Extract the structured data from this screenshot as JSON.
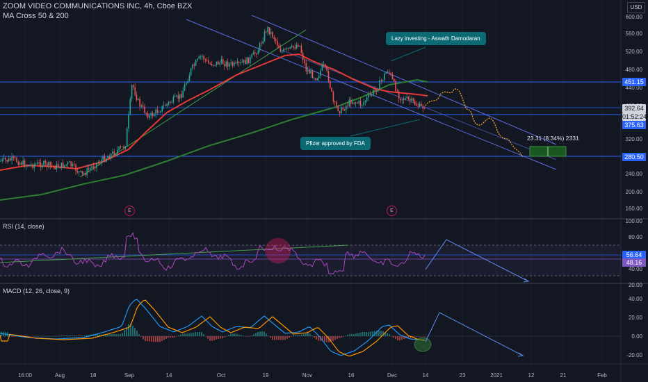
{
  "header": {
    "symbol_line": "ZOOM VIDEO COMMUNICATIONS INC, 4h, Cboe BZX",
    "study_line": "MA Cross 50 & 200"
  },
  "currency_label": "USD",
  "price_axis": {
    "ticks": [
      "600.00",
      "560.00",
      "520.00",
      "480.00",
      "440.00",
      "400.00",
      "360.00",
      "320.00",
      "280.00",
      "240.00",
      "200.00",
      "160.00"
    ],
    "badges": [
      {
        "text": "451.15",
        "bg": "#2962ff",
        "color": "#ffffff"
      },
      {
        "text": "392.64",
        "bg": "#d1d4dc",
        "color": "#131722"
      },
      {
        "text": "01:52:24",
        "bg": "#d1d4dc",
        "color": "#131722"
      },
      {
        "text": "375.63",
        "bg": "#2962ff",
        "color": "#ffffff"
      },
      {
        "text": "280.50",
        "bg": "#2962ff",
        "color": "#ffffff"
      }
    ]
  },
  "rsi": {
    "label": "RSI (14, close)",
    "ticks": [
      "100.00",
      "80.00",
      "40.00",
      "20.00"
    ],
    "badges": [
      {
        "text": "56.64",
        "bg": "#2962ff",
        "color": "#ffffff"
      },
      {
        "text": "48.16",
        "bg": "#7e57c2",
        "color": "#ffffff"
      }
    ]
  },
  "macd": {
    "label": "MACD (12, 26, close, 9)",
    "ticks": [
      "40.00",
      "20.00",
      "0.00",
      "-20.00"
    ]
  },
  "time_axis": [
    "16:00",
    "Aug",
    "18",
    "Sep",
    "14",
    "Oct",
    "19",
    "Nov",
    "16",
    "Dec",
    "14",
    "23",
    "2021",
    "12",
    "21",
    "Feb"
  ],
  "annotations": {
    "callout_top": "Lazy investing - Aswath Damodaran",
    "callout_bottom": "Pfizer approved by FDA",
    "measure": "23.31 (8.34%) 2331",
    "earnings_mark": "E"
  },
  "colors": {
    "background": "#131722",
    "up_candle": "#26a69a",
    "down_candle": "#ef5350",
    "ma50": "#e53935",
    "ma200": "#2e7d32",
    "channel": "#5b6ee1",
    "rsi_line": "#7e57c2",
    "macd_line": "#2196f3",
    "signal_line": "#ff9800",
    "callout": "#0c6a75",
    "projection": "#ffa726"
  },
  "chart_data": {
    "type": "candlestick",
    "price_series_sample": [
      {
        "t": "Aug",
        "close": 282
      },
      {
        "t": "18",
        "close": 265
      },
      {
        "t": "Sep",
        "close": 300
      },
      {
        "t": "Sep+",
        "close": 460
      },
      {
        "t": "14",
        "close": 395
      },
      {
        "t": "Oct",
        "close": 470
      },
      {
        "t": "19",
        "close": 575
      },
      {
        "t": "Nov",
        "close": 480
      },
      {
        "t": "16",
        "close": 410
      },
      {
        "t": "Dec",
        "close": 430
      },
      {
        "t": "14",
        "close": 392.64
      }
    ],
    "ylim": [
      140,
      620
    ],
    "horizontal_levels": [
      451.15,
      375.63,
      280.5
    ],
    "ma_lines": [
      "MA 50",
      "MA 200"
    ]
  }
}
